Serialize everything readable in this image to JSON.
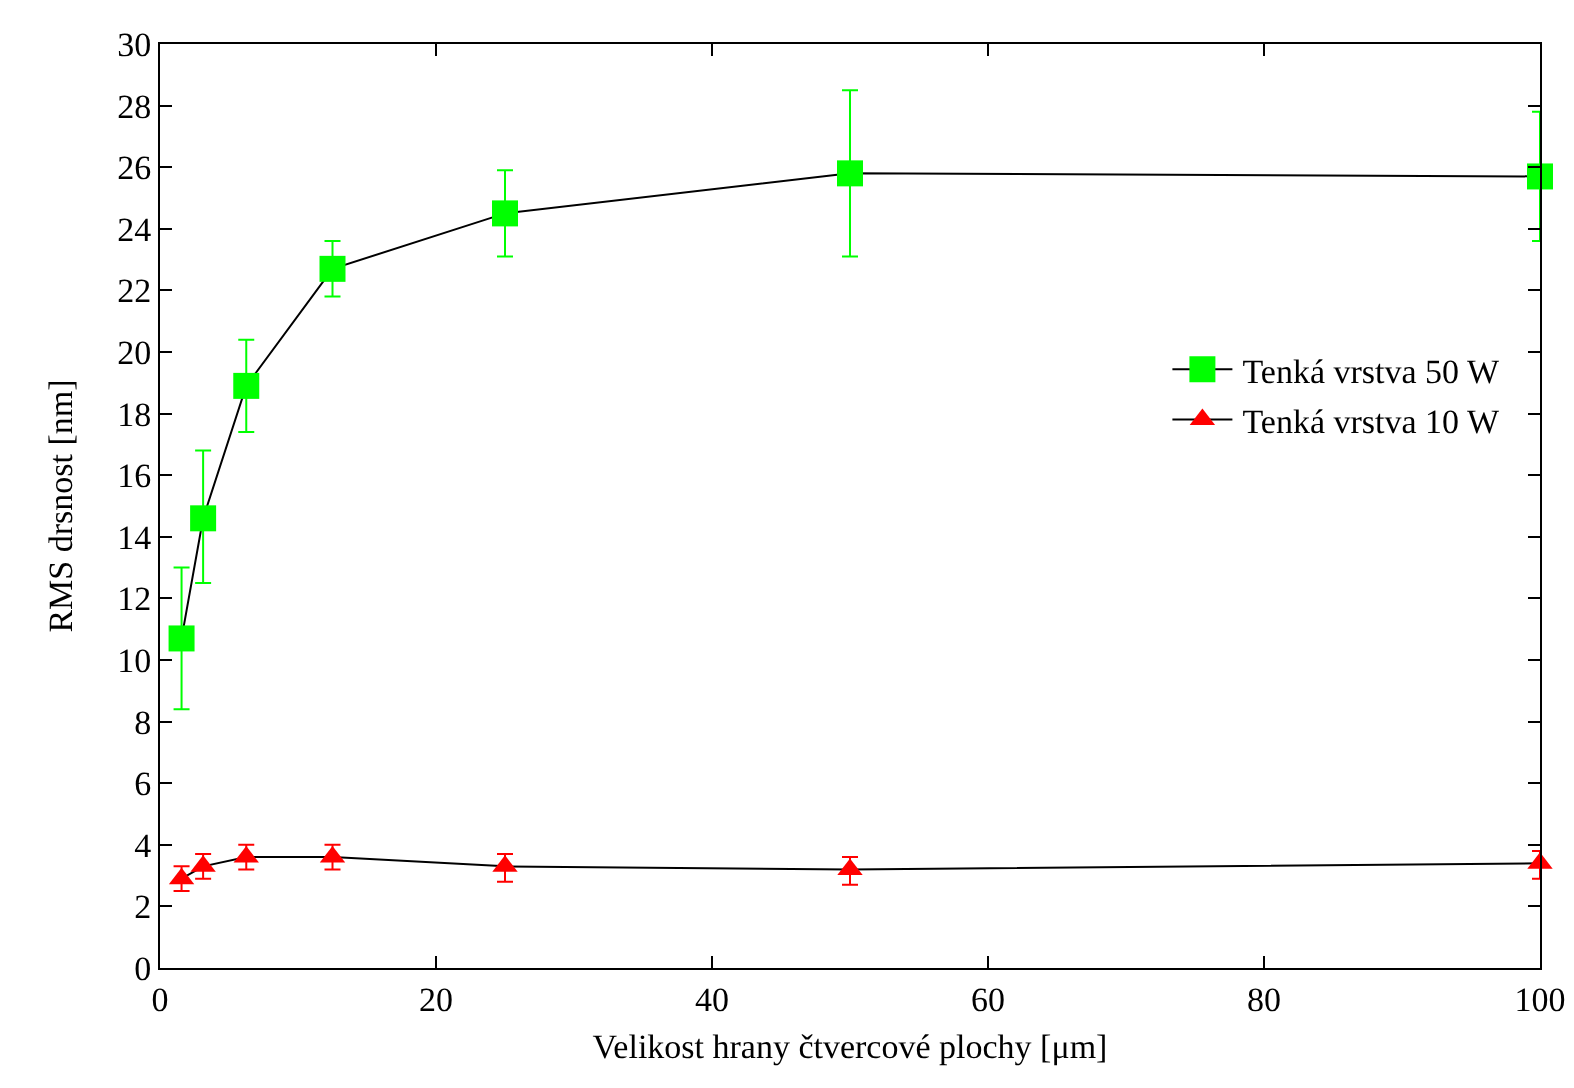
{
  "chart_data": {
    "type": "line",
    "xlabel": "Velikost hrany čtvercové plochy [μm]",
    "ylabel": "RMS drsnost [nm]",
    "xlim": [
      0,
      100
    ],
    "xticks": [
      0,
      20,
      40,
      60,
      80,
      100
    ],
    "ylim": [
      0,
      30
    ],
    "yticks": [
      0,
      2,
      4,
      6,
      8,
      10,
      12,
      14,
      16,
      18,
      20,
      22,
      24,
      26,
      28,
      30
    ],
    "grid": false,
    "legend": "right",
    "line_style": "solid",
    "series": [
      {
        "name": "Tenká vrstva 50 W",
        "color": "#00ff00",
        "marker": "square",
        "x": [
          1.5625,
          3.125,
          6.25,
          12.5,
          25,
          50,
          100
        ],
        "values": [
          10.7,
          14.6,
          18.9,
          22.7,
          24.5,
          25.8,
          25.7
        ],
        "errors": [
          [
            8.4,
            13.0
          ],
          [
            12.5,
            16.8
          ],
          [
            17.4,
            20.4
          ],
          [
            21.8,
            23.6
          ],
          [
            23.1,
            25.9
          ],
          [
            23.1,
            28.5
          ],
          [
            23.6,
            27.8
          ]
        ]
      },
      {
        "name": "Tenká vrstva 10 W",
        "color": "#ff0000",
        "marker": "triangle",
        "x": [
          1.5625,
          3.125,
          6.25,
          12.5,
          25,
          50,
          100
        ],
        "values": [
          2.9,
          3.3,
          3.6,
          3.6,
          3.3,
          3.2,
          3.4
        ],
        "errors": [
          [
            2.5,
            3.3
          ],
          [
            2.9,
            3.7
          ],
          [
            3.2,
            4.0
          ],
          [
            3.2,
            4.0
          ],
          [
            2.8,
            3.7
          ],
          [
            2.7,
            3.6
          ],
          [
            2.9,
            3.8
          ]
        ]
      }
    ]
  }
}
